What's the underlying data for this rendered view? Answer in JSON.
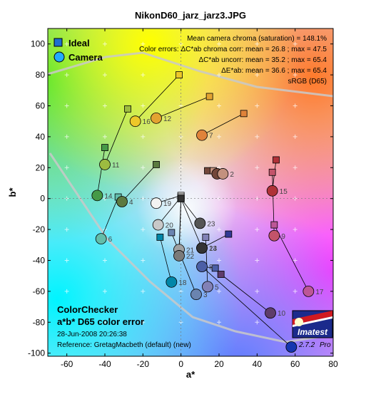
{
  "chart_data": {
    "type": "scatter",
    "title": "NikonD60_jarz_jarz3.JPG",
    "xlabel": "a*",
    "ylabel": "b*",
    "xlim": [
      -70,
      80
    ],
    "ylim": [
      -102,
      110
    ],
    "xticks": [
      -60,
      -40,
      -20,
      0,
      20,
      40,
      60,
      80
    ],
    "yticks": [
      100,
      80,
      60,
      40,
      20,
      0,
      -20,
      -40,
      -60,
      -80,
      -100
    ],
    "grid": true,
    "legend": {
      "placement": "top-left",
      "entries": [
        {
          "name": "Ideal",
          "marker": "square",
          "color": "#1e6fd1"
        },
        {
          "name": "Camera",
          "marker": "circle",
          "color": "#22aaff"
        }
      ]
    },
    "stats": [
      "Mean camera chroma (saturation) = 148.1%",
      "Color errors:  ΔC*ab chroma corr:  mean = 26.8 ;  max = 47.5",
      "ΔC*ab uncorr:  mean = 35.2 ;  max = 65.4",
      "ΔE*ab:  mean = 36.6 ;  max = 65.4",
      "sRGB (D65)"
    ],
    "info": {
      "line1": "ColorChecker",
      "line2": "a*b* D65 color error",
      "line3": "28-Jun-2008 20:26:38",
      "line4": "Reference: GretagMacbeth (default) (new)"
    },
    "logo": {
      "brand": "Imatest",
      "version": "2.7.2",
      "edition": "Pro"
    },
    "patches": [
      {
        "label": "1",
        "ideal": [
          14,
          18
        ],
        "camera": [
          19,
          16
        ],
        "color": "#73473a"
      },
      {
        "label": "2",
        "ideal": [
          17,
          18
        ],
        "camera": [
          22,
          16
        ],
        "color": "#c3917e"
      },
      {
        "label": "3",
        "ideal": [
          -5,
          -22
        ],
        "camera": [
          8,
          -62
        ],
        "color": "#6a84b0"
      },
      {
        "label": "4",
        "ideal": [
          -13,
          22
        ],
        "camera": [
          -31,
          -2
        ],
        "color": "#5c7a40"
      },
      {
        "label": "5",
        "ideal": [
          13,
          -25
        ],
        "camera": [
          14,
          -57
        ],
        "color": "#8281b6"
      },
      {
        "label": "6",
        "ideal": [
          -33,
          1
        ],
        "camera": [
          -42,
          -26
        ],
        "color": "#63bdaa"
      },
      {
        "label": "7",
        "ideal": [
          33,
          55
        ],
        "camera": [
          11,
          41
        ],
        "color": "#e0833a"
      },
      {
        "label": "8",
        "ideal": [
          18,
          -45
        ],
        "camera": [
          11,
          -44
        ],
        "color": "#4b5fa6"
      },
      {
        "label": "9",
        "ideal": [
          48,
          17
        ],
        "camera": [
          49,
          -24
        ],
        "color": "#c3536a"
      },
      {
        "label": "10",
        "ideal": [
          21,
          -49
        ],
        "camera": [
          47,
          -74
        ],
        "color": "#5e3c6b"
      },
      {
        "label": "11",
        "ideal": [
          -28,
          58
        ],
        "camera": [
          -40,
          22
        ],
        "color": "#9dbc40"
      },
      {
        "label": "12",
        "ideal": [
          15,
          66
        ],
        "camera": [
          -13,
          52
        ],
        "color": "#e3a331"
      },
      {
        "label": "13",
        "ideal": [
          25,
          -23
        ],
        "camera": [
          11,
          -32
        ],
        "color": "#323994"
      },
      {
        "label": "14",
        "ideal": [
          -40,
          33
        ],
        "camera": [
          -44,
          2
        ],
        "color": "#469a48"
      },
      {
        "label": "15",
        "ideal": [
          50,
          25
        ],
        "camera": [
          48,
          5
        ],
        "color": "#b03238"
      },
      {
        "label": "16",
        "ideal": [
          -1,
          80
        ],
        "camera": [
          -24,
          50
        ],
        "color": "#edc829"
      },
      {
        "label": "17",
        "ideal": [
          49,
          -17
        ],
        "camera": [
          67,
          -60
        ],
        "color": "#bd5697"
      },
      {
        "label": "18",
        "ideal": [
          -11,
          -25
        ],
        "camera": [
          -5,
          -54
        ],
        "color": "#0087a8"
      },
      {
        "label": "19",
        "ideal": [
          0,
          2
        ],
        "camera": [
          -13,
          -3
        ],
        "color": "#f3f3f2"
      },
      {
        "label": "20",
        "ideal": [
          0,
          1
        ],
        "camera": [
          -12,
          -17
        ],
        "color": "#c8c8c8"
      },
      {
        "label": "21",
        "ideal": [
          0,
          0
        ],
        "camera": [
          -1,
          -33
        ],
        "color": "#a0a0a0"
      },
      {
        "label": "22",
        "ideal": [
          0,
          0
        ],
        "camera": [
          -1,
          -37
        ],
        "color": "#7a7a79"
      },
      {
        "label": "23",
        "ideal": [
          0,
          0
        ],
        "camera": [
          10,
          -16
        ],
        "color": "#555555"
      },
      {
        "label": "24",
        "ideal": [
          0,
          0
        ],
        "camera": [
          11,
          -32
        ],
        "color": "#343434"
      },
      {
        "label": "",
        "ideal": [
          11,
          -44
        ],
        "camera": [
          58,
          -96
        ],
        "color": "#1636b0"
      }
    ]
  }
}
